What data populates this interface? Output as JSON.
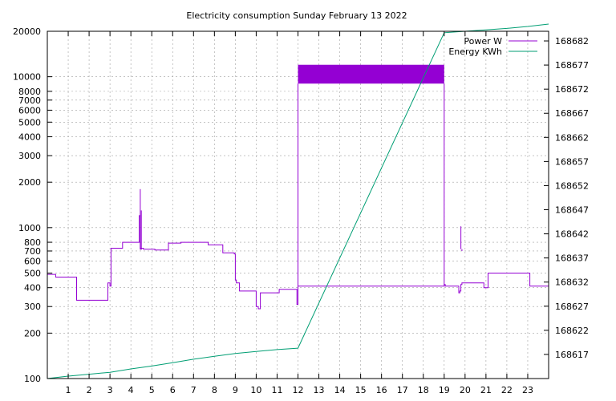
{
  "chart_data": {
    "type": "line",
    "title": "Electricity consumption Sunday February 13 2022",
    "x_ticks": [
      1,
      2,
      3,
      4,
      5,
      6,
      7,
      8,
      9,
      10,
      11,
      12,
      13,
      14,
      15,
      16,
      17,
      18,
      19,
      20,
      21,
      22,
      23
    ],
    "xlim": [
      0,
      24
    ],
    "y_left": {
      "scale": "log",
      "ylim": [
        100,
        20000
      ],
      "ticks": [
        100,
        200,
        300,
        400,
        500,
        600,
        700,
        800,
        1000,
        2000,
        3000,
        4000,
        5000,
        6000,
        7000,
        8000,
        10000,
        20000
      ]
    },
    "y_right": {
      "scale": "linear",
      "ylim": [
        168612,
        168684
      ],
      "ticks": [
        168617,
        168622,
        168627,
        168632,
        168637,
        168642,
        168647,
        168652,
        168657,
        168662,
        168667,
        168672,
        168677,
        168682
      ]
    },
    "grid": true,
    "legend_position": "top-right",
    "series": [
      {
        "name": "Power W",
        "axis": "left",
        "color": "#9400d3",
        "step": true,
        "x": [
          0,
          0.4,
          1.4,
          2.8,
          2.9,
          3.0,
          3.05,
          3.6,
          4.4,
          4.45,
          4.5,
          4.6,
          5.15,
          5.8,
          6.4,
          6.95,
          7.7,
          8.4,
          8.95,
          9.0,
          9.05,
          9.2,
          9.9,
          10.0,
          10.1,
          10.2,
          10.7,
          11.1,
          11.15,
          11.95,
          12.0,
          19.0,
          19.05,
          19.65,
          19.7,
          19.75,
          19.8,
          19.85,
          20.9,
          21.1,
          23.1,
          24
        ],
        "y": [
          490,
          470,
          330,
          330,
          430,
          410,
          730,
          800,
          1200,
          720,
          730,
          720,
          710,
          790,
          800,
          800,
          770,
          680,
          670,
          450,
          430,
          380,
          380,
          300,
          290,
          370,
          370,
          390,
          390,
          310,
          410,
          420,
          410,
          410,
          370,
          380,
          420,
          430,
          400,
          500,
          410,
          410
        ],
        "spikes": [
          {
            "x": 4.45,
            "y": 1800
          },
          {
            "x": 4.5,
            "y": 1300
          },
          {
            "x": 19.8,
            "y": 1020
          },
          {
            "x": 19.85,
            "y": 700
          }
        ],
        "band": {
          "x_start": 12.0,
          "x_end": 19.0,
          "y_low": 9000,
          "y_high": 12000
        }
      },
      {
        "name": "Energy KWh",
        "axis": "right",
        "color": "#009e73",
        "step": false,
        "x": [
          0,
          1,
          2,
          3,
          4,
          5,
          6,
          7,
          8,
          9,
          10,
          11,
          12,
          19.0,
          20,
          21,
          22,
          23,
          24
        ],
        "y": [
          168612,
          168612.5,
          168612.9,
          168613.3,
          168614,
          168614.6,
          168615.3,
          168616,
          168616.6,
          168617.2,
          168617.6,
          168618,
          168618.3,
          168683.7,
          168684,
          168684.3,
          168684.6,
          168685,
          168685.5
        ]
      }
    ]
  }
}
